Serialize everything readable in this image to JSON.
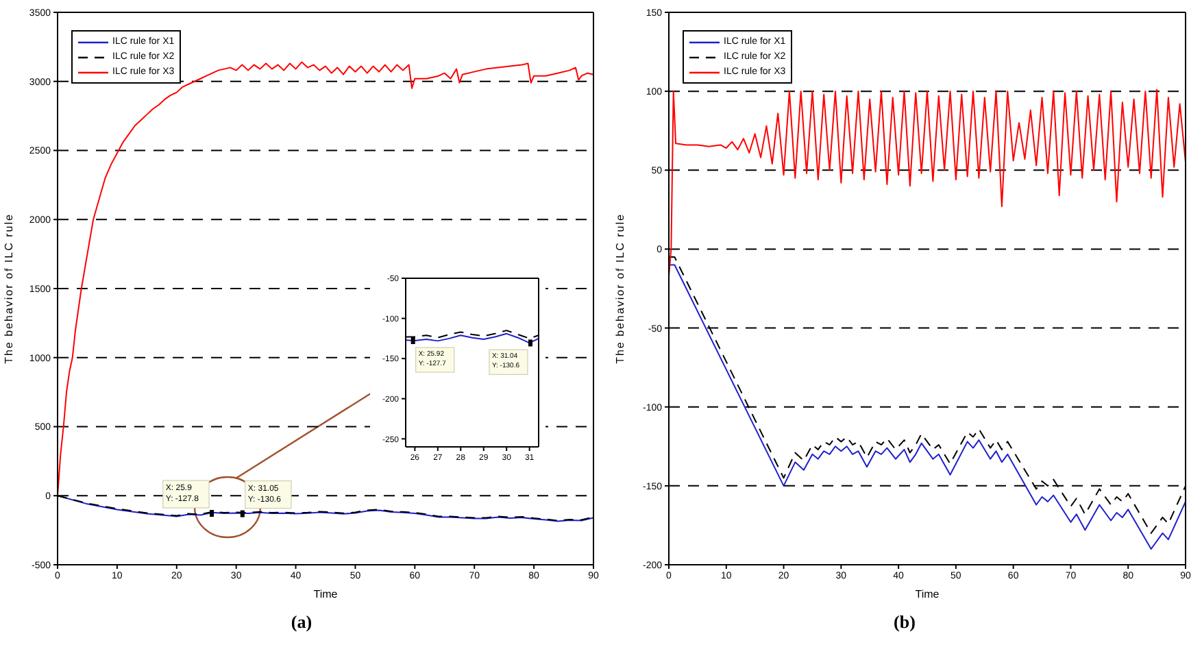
{
  "chart_data": [
    {
      "type": "line",
      "title": "(a)",
      "xlabel": "Time",
      "ylabel": "The behavior of ILC rule",
      "xlim": [
        0,
        90
      ],
      "xticks": [
        0,
        10,
        20,
        30,
        40,
        50,
        60,
        70,
        80,
        90
      ],
      "ylim": [
        -500,
        3500
      ],
      "yticks": [
        -500,
        0,
        500,
        1000,
        1500,
        2000,
        2500,
        3000,
        3500
      ],
      "grid": "y",
      "legend": "top left",
      "marker": "none",
      "series": [
        {
          "name": "ILC rule for X1",
          "color": "#1f1fd0",
          "line_style": "solid",
          "x": [
            0,
            5,
            10,
            15,
            20,
            22,
            24,
            26,
            28,
            30,
            32,
            34,
            36,
            38,
            40,
            42,
            44,
            46,
            48,
            50,
            52,
            54,
            56,
            58,
            60,
            62,
            64,
            66,
            68,
            70,
            72,
            74,
            76,
            78,
            80,
            82,
            84,
            86,
            88,
            90
          ],
          "values": [
            0,
            -60,
            -100,
            -130,
            -150,
            -135,
            -140,
            -122,
            -128,
            -125,
            -128,
            -122,
            -128,
            -126,
            -130,
            -127,
            -120,
            -125,
            -132,
            -125,
            -110,
            -105,
            -118,
            -122,
            -128,
            -140,
            -155,
            -155,
            -160,
            -165,
            -165,
            -155,
            -162,
            -158,
            -168,
            -175,
            -185,
            -178,
            -180,
            -160
          ]
        },
        {
          "name": "ILC rule for X2",
          "color": "#000000",
          "line_style": "dashed",
          "x": [
            0,
            5,
            10,
            15,
            20,
            22,
            24,
            26,
            28,
            30,
            32,
            34,
            36,
            38,
            40,
            42,
            44,
            46,
            48,
            50,
            52,
            54,
            56,
            58,
            60,
            62,
            64,
            66,
            68,
            70,
            72,
            74,
            76,
            78,
            80,
            82,
            84,
            86,
            88,
            90
          ],
          "values": [
            0,
            -55,
            -95,
            -125,
            -145,
            -130,
            -135,
            -117,
            -123,
            -120,
            -123,
            -117,
            -123,
            -121,
            -125,
            -122,
            -115,
            -120,
            -127,
            -120,
            -105,
            -100,
            -113,
            -117,
            -123,
            -135,
            -150,
            -150,
            -155,
            -160,
            -160,
            -150,
            -157,
            -153,
            -163,
            -170,
            -180,
            -173,
            -175,
            -155
          ]
        },
        {
          "name": "ILC rule for X3",
          "color": "#ff0000",
          "line_style": "solid",
          "x": [
            0,
            0.5,
            1,
            1.5,
            2,
            2.5,
            3,
            4,
            5,
            6,
            7,
            8,
            9,
            10,
            11,
            12,
            13,
            14,
            15,
            16,
            17,
            18,
            19,
            20,
            21,
            22,
            23,
            24,
            25,
            26,
            27,
            28,
            29,
            30,
            31,
            32,
            33,
            34,
            35,
            36,
            37,
            38,
            39,
            40,
            41,
            42,
            43,
            44,
            45,
            46,
            47,
            48,
            49,
            50,
            51,
            52,
            53,
            54,
            55,
            56,
            57,
            58,
            59,
            59.5,
            60,
            62,
            64,
            65,
            66,
            67,
            67.5,
            68,
            70,
            72,
            74,
            76,
            78,
            79,
            79.5,
            80,
            82,
            84,
            86,
            87,
            87.5,
            88,
            89,
            90
          ],
          "values": [
            0,
            300,
            500,
            750,
            900,
            1000,
            1200,
            1500,
            1750,
            2000,
            2150,
            2300,
            2400,
            2480,
            2560,
            2620,
            2680,
            2720,
            2760,
            2800,
            2830,
            2870,
            2900,
            2920,
            2960,
            2980,
            3000,
            3020,
            3040,
            3060,
            3080,
            3090,
            3100,
            3080,
            3120,
            3080,
            3120,
            3090,
            3130,
            3090,
            3120,
            3080,
            3130,
            3090,
            3140,
            3100,
            3120,
            3080,
            3110,
            3060,
            3100,
            3050,
            3110,
            3070,
            3110,
            3060,
            3110,
            3070,
            3120,
            3070,
            3120,
            3080,
            3120,
            2950,
            3020,
            3020,
            3040,
            3060,
            3020,
            3090,
            2990,
            3050,
            3070,
            3090,
            3100,
            3110,
            3120,
            3130,
            2990,
            3040,
            3040,
            3060,
            3080,
            3100,
            3010,
            3040,
            3060,
            3050
          ]
        }
      ],
      "annotations": [
        {
          "text": "X: 25.9\nY: -127.8",
          "x": 25.9,
          "y": -127.8
        },
        {
          "text": "X: 31.05\nY: -130.6",
          "x": 31.05,
          "y": -130.6
        }
      ]
    },
    {
      "type": "line",
      "xlim": [
        25.6,
        31.4
      ],
      "xticks": [
        26,
        27,
        28,
        29,
        30,
        31
      ],
      "ylim": [
        -260,
        -50
      ],
      "yticks": [
        -50,
        -100,
        -150,
        -200,
        -250
      ],
      "marker": "none",
      "series": [
        {
          "color": "#1f1fd0",
          "line_style": "solid",
          "x": [
            25.6,
            26,
            26.5,
            27,
            27.5,
            28,
            28.5,
            29,
            29.5,
            30,
            30.5,
            31,
            31.4
          ],
          "values": [
            -127,
            -127.7,
            -126,
            -128,
            -125,
            -121,
            -124,
            -126,
            -123,
            -119,
            -124,
            -130.6,
            -125
          ]
        },
        {
          "color": "#000000",
          "line_style": "dashed",
          "x": [
            25.6,
            26,
            26.5,
            27,
            27.5,
            28,
            28.5,
            29,
            29.5,
            30,
            30.5,
            31,
            31.4
          ],
          "values": [
            -123,
            -123,
            -121,
            -124,
            -120,
            -117,
            -120,
            -122,
            -119,
            -115,
            -120,
            -125,
            -121
          ]
        }
      ],
      "annotations": [
        {
          "text": "X: 25.92\nY: -127.7",
          "x": 25.92,
          "y": -127.7
        },
        {
          "text": "X: 31.04\nY: -130.6",
          "x": 31.04,
          "y": -130.6
        }
      ]
    },
    {
      "type": "line",
      "title": "(b)",
      "xlabel": "Time",
      "ylabel": "The behavior of ILC rule",
      "xlim": [
        0,
        90
      ],
      "xticks": [
        0,
        10,
        20,
        30,
        40,
        50,
        60,
        70,
        80,
        90
      ],
      "ylim": [
        -200,
        150
      ],
      "yticks": [
        -200,
        -150,
        -100,
        -50,
        0,
        50,
        100,
        150
      ],
      "grid": "y",
      "legend": "top left",
      "marker": "none",
      "series": [
        {
          "name": "ILC rule for X1",
          "color": "#1f1fd0",
          "line_style": "solid",
          "x": [
            0,
            1,
            20,
            22,
            23.5,
            25,
            26,
            27,
            28,
            29,
            30,
            31,
            32,
            33,
            34.5,
            36,
            37,
            38,
            39.5,
            41,
            42,
            43,
            44,
            46,
            47,
            49,
            52,
            53,
            54,
            56,
            57,
            58,
            59,
            64,
            65,
            66,
            67,
            70,
            71,
            72.5,
            75,
            77,
            78,
            79,
            80,
            84,
            86,
            87,
            90
          ],
          "values": [
            -10,
            -10,
            -150,
            -135,
            -140,
            -130,
            -133,
            -128,
            -130,
            -125,
            -128,
            -125,
            -130,
            -128,
            -138,
            -128,
            -130,
            -126,
            -133,
            -127,
            -135,
            -130,
            -123,
            -133,
            -130,
            -143,
            -122,
            -126,
            -121,
            -133,
            -128,
            -135,
            -130,
            -162,
            -157,
            -160,
            -156,
            -173,
            -168,
            -178,
            -162,
            -172,
            -167,
            -170,
            -165,
            -190,
            -180,
            -184,
            -160
          ]
        },
        {
          "name": "ILC rule for X2",
          "color": "#000000",
          "line_style": "dashed",
          "x": [
            0,
            1,
            20,
            22,
            23.5,
            25,
            26,
            27,
            28,
            29,
            30,
            31,
            32,
            33,
            34.5,
            36,
            37,
            38,
            39.5,
            41,
            42,
            43,
            44,
            46,
            47,
            49,
            52,
            53,
            54,
            56,
            57,
            58,
            59,
            64,
            65,
            66,
            67,
            70,
            71,
            72.5,
            75,
            77,
            78,
            79,
            80,
            84,
            86,
            87,
            90
          ],
          "values": [
            -5,
            -5,
            -145,
            -129,
            -134,
            -124,
            -127,
            -122,
            -124,
            -119,
            -122,
            -119,
            -124,
            -122,
            -132,
            -122,
            -124,
            -120,
            -127,
            -121,
            -129,
            -124,
            -117,
            -127,
            -124,
            -136,
            -116,
            -119,
            -114,
            -126,
            -121,
            -127,
            -122,
            -152,
            -147,
            -150,
            -146,
            -163,
            -158,
            -168,
            -152,
            -162,
            -157,
            -160,
            -155,
            -180,
            -170,
            -174,
            -150
          ]
        },
        {
          "name": "ILC rule for X3",
          "color": "#ff0000",
          "line_style": "solid",
          "x": [
            0,
            0.4,
            0.8,
            1.2,
            3,
            5,
            7,
            9,
            10,
            11,
            12,
            13,
            14,
            15,
            16,
            17,
            18,
            19,
            20,
            21,
            22,
            23,
            24,
            25,
            26,
            27,
            28,
            29,
            30,
            31,
            32,
            33,
            34,
            35,
            36,
            37,
            38,
            39,
            40,
            41,
            42,
            43,
            44,
            45,
            46,
            47,
            48,
            49,
            50,
            51,
            52,
            53,
            54,
            55,
            56,
            57,
            58,
            59,
            60,
            61,
            62,
            63,
            64,
            65,
            66,
            67,
            68,
            69,
            70,
            71,
            72,
            73,
            74,
            75,
            76,
            77,
            78,
            79,
            80,
            81,
            82,
            83,
            84,
            85,
            86,
            87,
            88,
            89,
            90
          ],
          "values": [
            -17,
            0,
            100,
            67,
            66,
            66,
            65,
            66,
            64,
            68,
            63,
            70,
            61,
            73,
            58,
            78,
            54,
            86,
            47,
            100,
            45,
            100,
            48,
            100,
            44,
            98,
            50,
            100,
            42,
            97,
            48,
            100,
            44,
            95,
            49,
            100,
            41,
            96,
            47,
            100,
            40,
            99,
            48,
            100,
            43,
            97,
            50,
            100,
            44,
            98,
            46,
            100,
            45,
            96,
            49,
            100,
            27,
            100,
            56,
            80,
            57,
            88,
            53,
            96,
            48,
            100,
            34,
            99,
            47,
            100,
            45,
            97,
            50,
            98,
            44,
            100,
            30,
            93,
            52,
            95,
            48,
            100,
            45,
            101,
            33,
            96,
            52,
            92,
            55
          ]
        }
      ]
    }
  ]
}
